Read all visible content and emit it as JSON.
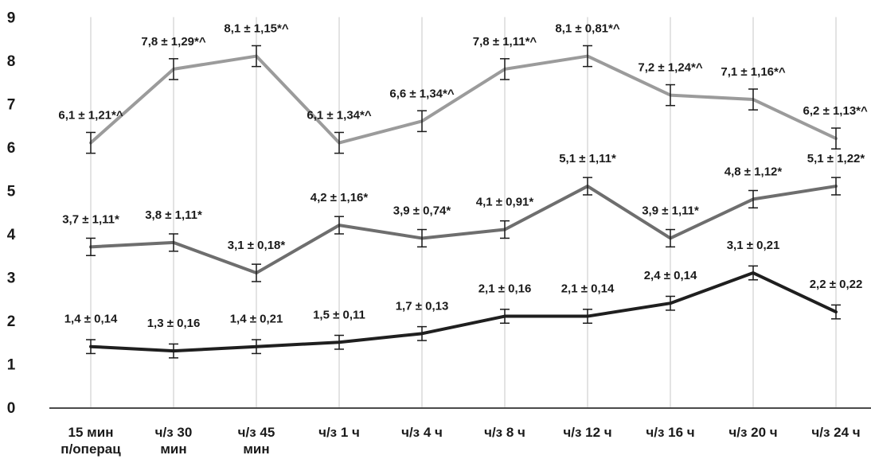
{
  "chart_data": {
    "type": "line",
    "title": "",
    "xlabel": "",
    "ylabel": "",
    "ylim": [
      0,
      9
    ],
    "yticks": [
      "0",
      "1",
      "2",
      "3",
      "4",
      "5",
      "6",
      "7",
      "8",
      "9"
    ],
    "grid": "vertical-lines-at-categories",
    "legend": "none",
    "categories": [
      [
        "15 мин",
        "п/операц"
      ],
      [
        "ч/з 30",
        "мин"
      ],
      [
        "ч/з 45",
        "мин"
      ],
      [
        "ч/з 1 ч"
      ],
      [
        "ч/з 4 ч"
      ],
      [
        "ч/з 8 ч"
      ],
      [
        "ч/з 12 ч"
      ],
      [
        "ч/з 16 ч"
      ],
      [
        "ч/з 20 ч"
      ],
      [
        "ч/з 24 ч"
      ]
    ],
    "series": [
      {
        "color": "#9b9b9b",
        "values": [
          6.1,
          7.8,
          8.1,
          6.1,
          6.6,
          7.8,
          8.1,
          7.2,
          7.1,
          6.2
        ],
        "errors": [
          0.24,
          0.24,
          0.24,
          0.24,
          0.24,
          0.24,
          0.24,
          0.24,
          0.24,
          0.24
        ],
        "labels": [
          "6,1 ± 1,21*^",
          "7,8 ± 1,29*^",
          "8,1 ± 1,15*^",
          "6,1 ± 1,34*^",
          "6,6 ± 1,34*^",
          "7,8 ± 1,11*^",
          "8,1 ± 0,81*^",
          "7,2 ± 1,24*^",
          "7,1 ± 1,16*^",
          "6,2 ± 1,13*^"
        ]
      },
      {
        "color": "#6e6e6e",
        "values": [
          3.7,
          3.8,
          3.1,
          4.2,
          3.9,
          4.1,
          5.1,
          3.9,
          4.8,
          5.1
        ],
        "errors": [
          0.2,
          0.2,
          0.2,
          0.2,
          0.2,
          0.2,
          0.2,
          0.2,
          0.2,
          0.2
        ],
        "labels": [
          "3,7 ± 1,11*",
          "3,8 ± 1,11*",
          "3,1 ± 0,18*",
          "4,2 ± 1,16*",
          "3,9 ± 0,74*",
          "4,1 ± 0,91*",
          "5,1 ± 1,11*",
          "3,9 ± 1,11*",
          "4,8 ± 1,12*",
          "5,1 ± 1,22*"
        ]
      },
      {
        "color": "#1f1f1f",
        "values": [
          1.4,
          1.3,
          1.4,
          1.5,
          1.7,
          2.1,
          2.1,
          2.4,
          3.1,
          2.2
        ],
        "errors": [
          0.16,
          0.16,
          0.16,
          0.16,
          0.16,
          0.16,
          0.16,
          0.16,
          0.16,
          0.16
        ],
        "labels": [
          "1,4 ± 0,14",
          "1,3 ± 0,16",
          "1,4 ± 0,21",
          "1,5 ± 0,11",
          "1,7 ± 0,13",
          "2,1 ± 0,16",
          "2,1 ± 0,14",
          "2,4 ± 0,14",
          "3,1 ± 0,21",
          "2,2 ± 0,22"
        ]
      }
    ]
  }
}
